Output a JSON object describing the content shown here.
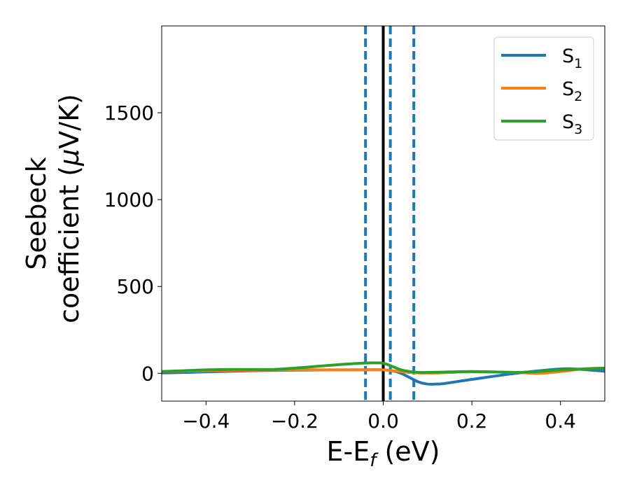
{
  "chart_data": {
    "type": "line",
    "xlabel": "E-E",
    "xlabel_sub": "f",
    "xlabel_unit": " (eV)",
    "ylabel_line1": "Seebeck",
    "ylabel_line2": "coefficient  (",
    "ylabel_mu": "μ",
    "ylabel_unit": "V/K)",
    "xlim": [
      -0.5,
      0.5
    ],
    "ylim": [
      -160,
      2000
    ],
    "xticks": [
      -0.4,
      -0.2,
      0.0,
      0.2,
      0.4
    ],
    "xtick_labels": [
      "−0.4",
      "−0.2",
      "0.0",
      "0.2",
      "0.4"
    ],
    "yticks": [
      0,
      500,
      1000,
      1500
    ],
    "ytick_labels": [
      "0",
      "500",
      "1000",
      "1500"
    ],
    "grid": false,
    "legend_position": "top-right",
    "vlines": [
      {
        "x": -0.04,
        "style": "dashed",
        "color": "#1f77b4"
      },
      {
        "x": 0.0,
        "style": "solid",
        "color": "#000000"
      },
      {
        "x": 0.016,
        "style": "dashed",
        "color": "#1f77b4"
      },
      {
        "x": 0.069,
        "style": "dashed",
        "color": "#1f77b4"
      }
    ],
    "series": [
      {
        "name": "S",
        "sub": "1",
        "color": "#1f77b4",
        "x": [
          -0.5,
          -0.4,
          -0.3,
          -0.2,
          -0.1,
          -0.04,
          0.0,
          0.02,
          0.04,
          0.06,
          0.08,
          0.1,
          0.12,
          0.14,
          0.2,
          0.3,
          0.4,
          0.45,
          0.5
        ],
        "y": [
          2,
          8,
          15,
          18,
          20,
          20,
          20,
          15,
          0,
          -25,
          -50,
          -62,
          -62,
          -58,
          -35,
          0,
          25,
          22,
          12
        ]
      },
      {
        "name": "S",
        "sub": "2",
        "color": "#ff7f0e",
        "x": [
          -0.5,
          -0.4,
          -0.3,
          -0.2,
          -0.1,
          -0.04,
          0.0,
          0.02,
          0.04,
          0.06,
          0.08,
          0.1,
          0.12,
          0.15,
          0.2,
          0.3,
          0.35,
          0.4,
          0.45,
          0.5
        ],
        "y": [
          10,
          15,
          18,
          20,
          20,
          20,
          20,
          15,
          10,
          5,
          2,
          2,
          2,
          5,
          8,
          5,
          0,
          10,
          25,
          30
        ]
      },
      {
        "name": "S",
        "sub": "3",
        "color": "#2ca02c",
        "x": [
          -0.5,
          -0.45,
          -0.4,
          -0.35,
          -0.3,
          -0.25,
          -0.2,
          -0.15,
          -0.1,
          -0.05,
          -0.02,
          0.0,
          0.02,
          0.04,
          0.06,
          0.08,
          0.1,
          0.15,
          0.2,
          0.25,
          0.3,
          0.35,
          0.4,
          0.45,
          0.5
        ],
        "y": [
          10,
          15,
          20,
          22,
          22,
          22,
          30,
          40,
          50,
          58,
          60,
          58,
          40,
          20,
          10,
          5,
          5,
          8,
          10,
          8,
          5,
          10,
          20,
          25,
          30
        ]
      }
    ]
  }
}
